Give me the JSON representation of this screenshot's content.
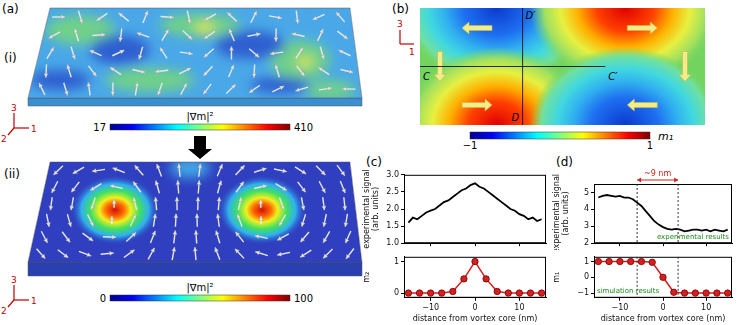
{
  "figure": {
    "a": {
      "label": "(a)",
      "i": {
        "label": "(i)",
        "axes": [
          "1",
          "2",
          "3"
        ],
        "colorbar": {
          "title": "|∇m|²",
          "range": [
            17,
            410
          ],
          "ticks": [
            17,
            410
          ]
        }
      },
      "ii": {
        "label": "(ii)",
        "axes": [
          "1",
          "2",
          "3"
        ],
        "colorbar": {
          "title": "|∇m|²",
          "range": [
            0,
            100
          ],
          "ticks": [
            0,
            100
          ]
        }
      }
    },
    "b": {
      "label": "(b)",
      "axes": [
        "1",
        "3"
      ],
      "points": [
        "C",
        "C′",
        "D",
        "D′"
      ],
      "colorbar": {
        "title": "m₁",
        "range": [
          -1,
          1
        ],
        "ticks": [
          {
            "value": -1,
            "label": "−1"
          },
          1
        ]
      }
    },
    "c": {
      "label": "(c)"
    },
    "d": {
      "label": "(d)"
    }
  },
  "chart_data": [
    {
      "type": "line",
      "y_label": [
        "experimental signal",
        "(arb. units)"
      ],
      "x": [
        -15,
        -14,
        -13,
        -12,
        -11,
        -10,
        -9,
        -8,
        -7,
        -6,
        -5,
        -4,
        -3,
        -2,
        -1,
        0,
        1,
        2,
        3,
        4,
        5,
        6,
        7,
        8,
        9,
        10,
        11,
        12,
        13,
        14,
        15
      ],
      "values": [
        1.6,
        1.75,
        1.7,
        1.8,
        1.9,
        1.95,
        2.0,
        2.1,
        2.2,
        2.25,
        2.35,
        2.45,
        2.55,
        2.6,
        2.7,
        2.75,
        2.65,
        2.6,
        2.5,
        2.4,
        2.3,
        2.2,
        2.1,
        2.0,
        1.95,
        1.85,
        1.8,
        1.7,
        1.75,
        1.65,
        1.7
      ],
      "color": "#000000",
      "marker": "none",
      "xlim": [
        -16,
        16
      ],
      "xticks": [
        {
          "value": -10,
          "label": "−10"
        },
        0,
        10
      ],
      "ylim": [
        1,
        3
      ],
      "yticks": [
        {
          "value": 1,
          "label": "1.0"
        },
        {
          "value": 1.5,
          "label": "1.5"
        },
        {
          "value": 2,
          "label": "2.0"
        },
        {
          "value": 2.5,
          "label": "2.5"
        },
        {
          "value": 3,
          "label": "3.0"
        }
      ],
      "tick_labels": "y",
      "grid": false
    },
    {
      "type": "line",
      "y_label": "m₂",
      "x_label": "distance from vortex core (nm)",
      "x": [
        -15,
        -12.5,
        -10,
        -7.5,
        -5,
        -2.5,
        0,
        2.5,
        5,
        7.5,
        10,
        12.5,
        15
      ],
      "values": [
        0,
        0,
        0,
        0,
        0.05,
        0.45,
        1,
        0.45,
        0.05,
        0,
        0,
        0,
        0
      ],
      "color": "#d42020",
      "marker": "circle",
      "xlim": [
        -16,
        16
      ],
      "xticks": [
        {
          "value": -10,
          "label": "−10"
        },
        0,
        10
      ],
      "ylim": [
        -0.15,
        1.15
      ],
      "yticks": [
        0,
        1
      ],
      "grid": false
    },
    {
      "type": "line",
      "y_label": [
        "experimental signal",
        "(arb. units)"
      ],
      "x": [
        -15,
        -14,
        -13,
        -12,
        -11,
        -10,
        -9,
        -8,
        -7,
        -6,
        -5,
        -4,
        -3,
        -2,
        -1,
        0,
        1,
        2,
        3,
        4,
        5,
        6,
        7,
        8,
        9,
        10,
        11,
        12,
        13,
        14,
        15
      ],
      "values": [
        4.7,
        4.8,
        4.85,
        4.8,
        4.75,
        4.8,
        4.7,
        4.7,
        4.6,
        4.4,
        4.2,
        3.9,
        3.6,
        3.3,
        3.1,
        2.95,
        2.85,
        2.8,
        2.85,
        2.8,
        2.7,
        2.75,
        2.8,
        2.8,
        2.75,
        2.8,
        2.7,
        2.8,
        2.75,
        2.7,
        2.8
      ],
      "color": "#000000",
      "marker": "none",
      "xlim": [
        -16,
        16
      ],
      "xticks": [
        {
          "value": -10,
          "label": "−10"
        },
        0,
        10
      ],
      "ylim": [
        2,
        5.5
      ],
      "yticks": [
        2,
        3,
        4,
        5
      ],
      "tick_labels": "y",
      "grid": false,
      "annotations": [
        {
          "text": "~9 nm",
          "x": [
            -6,
            3.5
          ]
        },
        {
          "text": "experimental results"
        }
      ]
    },
    {
      "type": "line",
      "y_label": "m₁",
      "x_label": "distance from vortex core (nm)",
      "x": [
        -15,
        -12.5,
        -10,
        -7.5,
        -5,
        -2.5,
        0,
        2.5,
        5,
        7.5,
        10,
        12.5,
        15
      ],
      "values": [
        1,
        1,
        1,
        1,
        1,
        0.95,
        0,
        -0.95,
        -1,
        -1,
        -1,
        -1,
        -1
      ],
      "color": "#d42020",
      "marker": "circle",
      "xlim": [
        -16,
        16
      ],
      "xticks": [
        {
          "value": -10,
          "label": "−10"
        },
        0,
        10
      ],
      "ylim": [
        -1.3,
        1.3
      ],
      "yticks": [
        {
          "value": -1,
          "label": "−1"
        },
        0,
        1
      ],
      "grid": false,
      "vlines": [
        -6,
        3.5
      ],
      "annotations": [
        {
          "text": "simulation results"
        }
      ]
    }
  ]
}
